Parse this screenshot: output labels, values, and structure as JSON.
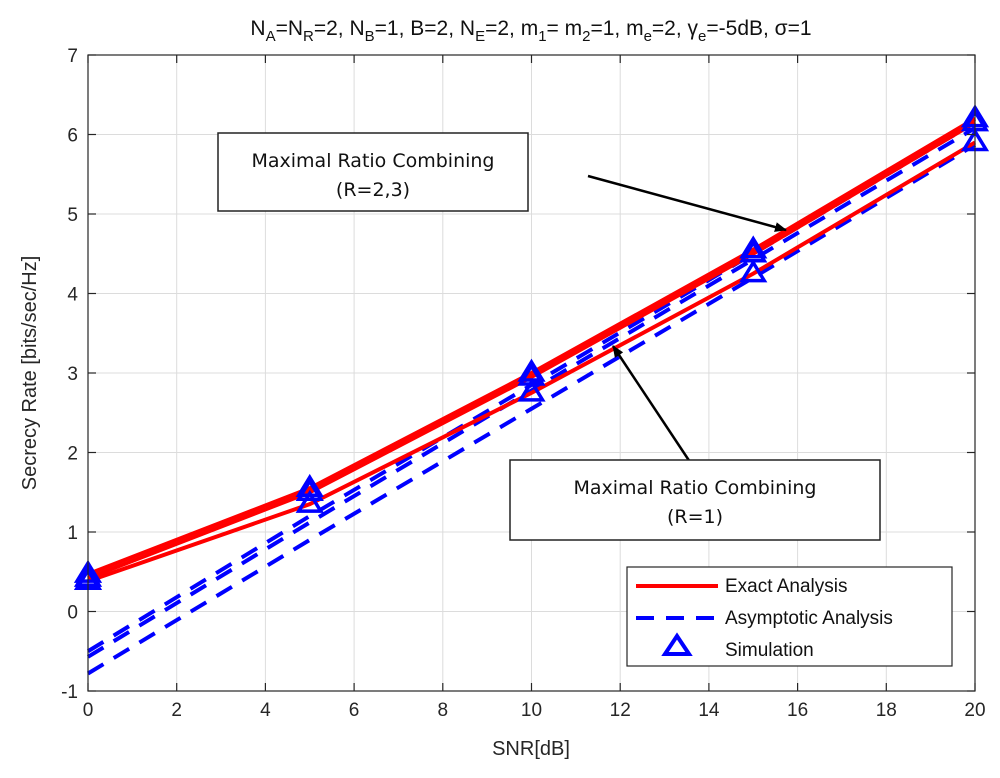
{
  "chart_data": {
    "type": "line",
    "title_segments": [
      {
        "t": "N",
        "sub": "A"
      },
      {
        "t": "=N",
        "sub": "R"
      },
      {
        "t": "=2, N",
        "sub": "B"
      },
      {
        "t": "=1, B=2, N",
        "sub": "E"
      },
      {
        "t": "=2, m",
        "sub": "1"
      },
      {
        "t": "= m",
        "sub": "2"
      },
      {
        "t": "=1, m",
        "sub": "e"
      },
      {
        "t": "=2, γ",
        "sub": "e"
      },
      {
        "t": "=-5dB, σ=1",
        "sub": ""
      }
    ],
    "xlabel": "SNR[dB]",
    "ylabel": "Secrecy Rate [bits/sec/Hz]",
    "xlim": [
      0,
      20
    ],
    "ylim": [
      -1,
      7
    ],
    "xticks": [
      "0",
      "2",
      "4",
      "6",
      "8",
      "10",
      "12",
      "14",
      "16",
      "18",
      "20"
    ],
    "yticks": [
      "-1",
      "0",
      "1",
      "2",
      "3",
      "4",
      "5",
      "6",
      "7"
    ],
    "grid": true,
    "legend_position": "bottom-right",
    "legend": [
      {
        "label": "Exact Analysis",
        "style": "solid",
        "color": "#ff0000"
      },
      {
        "label": "Asymptotic Analysis",
        "style": "dashed",
        "color": "#0000ff"
      },
      {
        "label": "Simulation",
        "style": "triangle",
        "color": "#0000ff"
      }
    ],
    "x": [
      0,
      5,
      10,
      15,
      20
    ],
    "exact_series": [
      {
        "values": [
          0.47,
          1.55,
          3.0,
          4.55,
          6.2
        ]
      },
      {
        "values": [
          0.42,
          1.5,
          2.95,
          4.5,
          6.15
        ]
      },
      {
        "values": [
          0.38,
          1.35,
          2.75,
          4.25,
          5.9
        ]
      }
    ],
    "asymptotic_series": [
      {
        "values": [
          -0.5,
          1.2,
          2.85,
          4.5,
          6.15
        ]
      },
      {
        "values": [
          -0.57,
          1.12,
          2.78,
          4.43,
          6.08
        ]
      },
      {
        "values": [
          -0.78,
          0.9,
          2.55,
          4.2,
          5.87
        ]
      }
    ],
    "simulation_series": [
      {
        "values": [
          0.47,
          1.55,
          3.0,
          4.55,
          6.2
        ]
      },
      {
        "values": [
          0.42,
          1.5,
          2.95,
          4.5,
          6.15
        ]
      },
      {
        "values": [
          0.38,
          1.35,
          2.75,
          4.25,
          5.9
        ]
      }
    ],
    "annotations": [
      {
        "line1": "Maximal Ratio Combining",
        "line2": "(R=2,3)",
        "arrow_to": [
          15.7,
          4.8
        ]
      },
      {
        "line1": "Maximal Ratio Combining",
        "line2": "(R=1)",
        "arrow_to": [
          11.7,
          3.35
        ]
      }
    ],
    "colors": {
      "exact": "#ff0000",
      "asymptotic": "#0000ff",
      "simulation": "#0000ff"
    }
  }
}
